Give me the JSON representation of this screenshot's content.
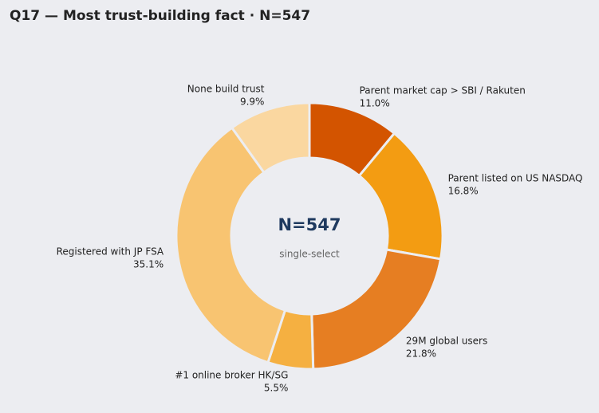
{
  "chart_data": {
    "type": "pie",
    "title": "Q17 — Most trust-building fact · N=547",
    "center_title": "N=547",
    "center_subtitle": "single-select",
    "categories": [
      "Parent market cap > SBI / Rakuten",
      "Parent listed on US NASDAQ",
      "29M global users",
      "#1 online broker HK/SG",
      "Registered with JP FSA",
      "None build trust"
    ],
    "values": [
      11.0,
      16.8,
      21.8,
      5.5,
      35.1,
      9.9
    ],
    "value_labels": [
      "11.0%",
      "16.8%",
      "21.8%",
      "5.5%",
      "35.1%",
      "9.9%"
    ],
    "colors": [
      "#d35400",
      "#f39c12",
      "#e67e22",
      "#f5b041",
      "#f8c471",
      "#fad7a0"
    ]
  }
}
